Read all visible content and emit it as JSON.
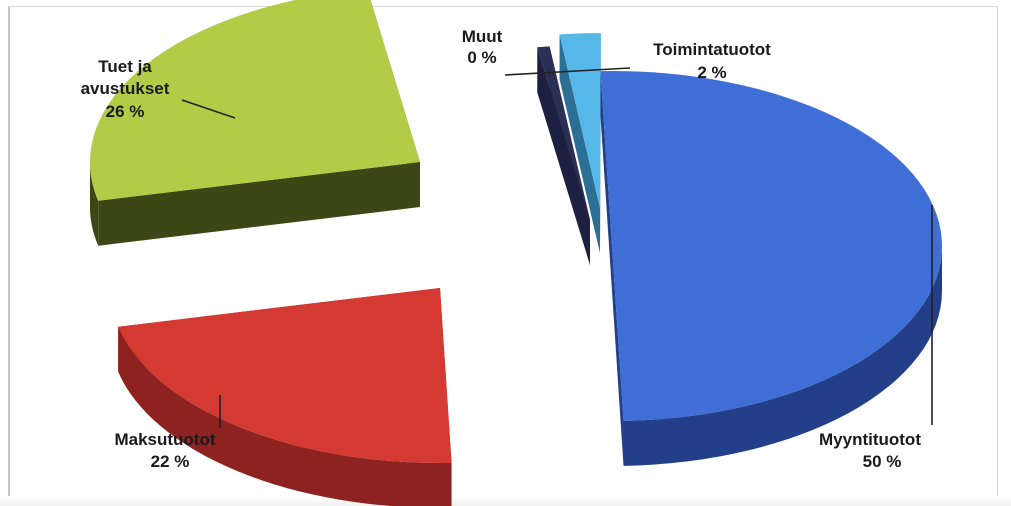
{
  "chart_data": {
    "type": "pie",
    "style": "3d-exploded",
    "title": "",
    "legend": "none",
    "slices": [
      {
        "label": "Myyntituotot",
        "value": 50,
        "value_label": "50 %",
        "color": "#3f6fd6",
        "side_color": "#243f8a"
      },
      {
        "label": "Maksutuotot",
        "value": 22,
        "value_label": "22 %",
        "color": "#d53a32",
        "side_color": "#8e2220"
      },
      {
        "label": "Tuet ja avustukset",
        "label_lines": [
          "Tuet ja",
          "avustukset"
        ],
        "value": 26,
        "value_label": "26 %",
        "color": "#b3cc48",
        "side_color": "#3c4715"
      },
      {
        "label": "Muut",
        "value": 0,
        "value_label": "0 %",
        "color": "#2a2f55",
        "side_color": "#1d2040"
      },
      {
        "label": "Toimintatuotot",
        "value": 2,
        "value_label": "2 %",
        "color": "#55b8e8",
        "side_color": "#2c6f95"
      }
    ]
  }
}
